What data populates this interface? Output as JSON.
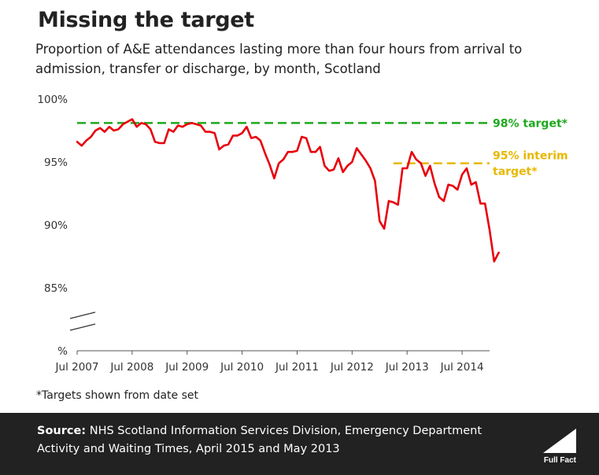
{
  "title": "Missing the target",
  "subtitle": "Proportion of A&E attendances lasting more than four hours from arrival to admission, transfer or discharge, by month, Scotland",
  "footnote": "*Targets shown from date set",
  "source_label": "Source:",
  "source_text": "NHS Scotland Information Services Division, Emergency Department Activity and Waiting Times, April 2015 and May 2013",
  "logo_text": "Full Fact",
  "colors": {
    "series": "#e8000b",
    "target98": "#1ea81e",
    "target95": "#e6b800",
    "footer": "#222222"
  },
  "chart_data": {
    "type": "line",
    "title": "",
    "xlabel": "",
    "ylabel": "",
    "xlim": [
      "2007-07",
      "2015-01"
    ],
    "ylim": [
      80,
      100
    ],
    "axis_break": true,
    "x_ticks": [
      "Jul 2007",
      "Jul 2008",
      "Jul 2009",
      "Jul 2010",
      "Jul 2011",
      "Jul 2012",
      "Jul 2013",
      "Jul 2014"
    ],
    "y_ticks": [
      {
        "value": 80,
        "label": "%"
      },
      {
        "value": 85,
        "label": "85%"
      },
      {
        "value": 90,
        "label": "90%"
      },
      {
        "value": 95,
        "label": "95%"
      },
      {
        "value": 100,
        "label": "100%"
      }
    ],
    "series": [
      {
        "start": "2007-07",
        "values": [
          96.6,
          96.3,
          96.7,
          97.0,
          97.5,
          97.7,
          97.4,
          97.8,
          97.5,
          97.6,
          98.0,
          98.2,
          98.4,
          97.8,
          98.1,
          98.0,
          97.6,
          96.6,
          96.5,
          96.5,
          97.6,
          97.4,
          97.9,
          97.8,
          98.0,
          98.1,
          98.0,
          97.9,
          97.4,
          97.4,
          97.3,
          96.0,
          96.3,
          96.4,
          97.1,
          97.1,
          97.3,
          97.8,
          96.9,
          97.0,
          96.7,
          95.7,
          94.8,
          93.7,
          94.9,
          95.2,
          95.8,
          95.8,
          95.9,
          97.0,
          96.9,
          95.8,
          95.8,
          96.2,
          94.7,
          94.3,
          94.4,
          95.3,
          94.2,
          94.7,
          95.0,
          96.1,
          95.6,
          95.1,
          94.5,
          93.5,
          90.3,
          89.7,
          91.9,
          91.8,
          91.6,
          94.5,
          94.5,
          95.8,
          95.2,
          94.9,
          93.9,
          94.7,
          93.3,
          92.2,
          91.9,
          93.2,
          93.1,
          92.8,
          94.0,
          94.5,
          93.2,
          93.4,
          91.7,
          91.7,
          89.6,
          87.1,
          87.8
        ]
      }
    ],
    "reference_lines": [
      {
        "label": "98% target*",
        "value": 98.1,
        "from": "2007-07",
        "to": "2015-01"
      },
      {
        "label": "95% interim target*",
        "label_lines": [
          "95% interim",
          "target*"
        ],
        "value": 94.9,
        "from": "2013-04",
        "to": "2015-01"
      }
    ]
  }
}
